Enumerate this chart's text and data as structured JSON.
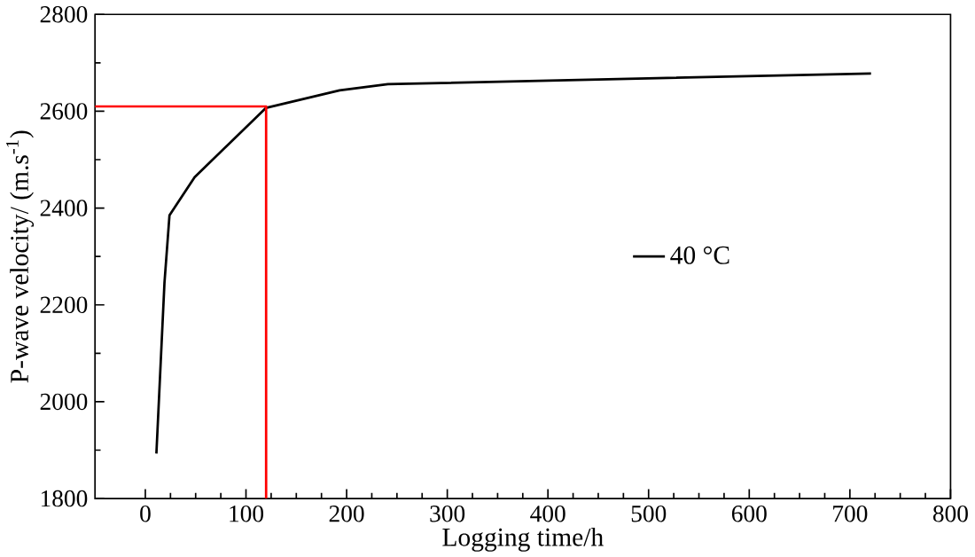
{
  "chart_data": {
    "type": "line",
    "xlabel": "Logging time/h",
    "ylabel": "P-wave velocity/ (m.s$^{-1}$)",
    "xlim": [
      -50,
      800
    ],
    "ylim": [
      1800,
      2800
    ],
    "xticks": [
      0,
      100,
      200,
      300,
      400,
      500,
      600,
      700,
      800
    ],
    "yticks": [
      1800,
      2000,
      2200,
      2400,
      2600,
      2800
    ],
    "legend": "right",
    "series": [
      {
        "name": "40 °C",
        "color": "#000000",
        "x": [
          11,
          19,
          24,
          49,
          120,
          193,
          241,
          721
        ],
        "values": [
          1893,
          2245,
          2385,
          2464,
          2607,
          2643,
          2656,
          2678
        ]
      },
      {
        "color": "#ff0000",
        "x": [
          -50,
          120,
          120
        ],
        "values": [
          2610,
          2610,
          1800
        ]
      }
    ]
  }
}
